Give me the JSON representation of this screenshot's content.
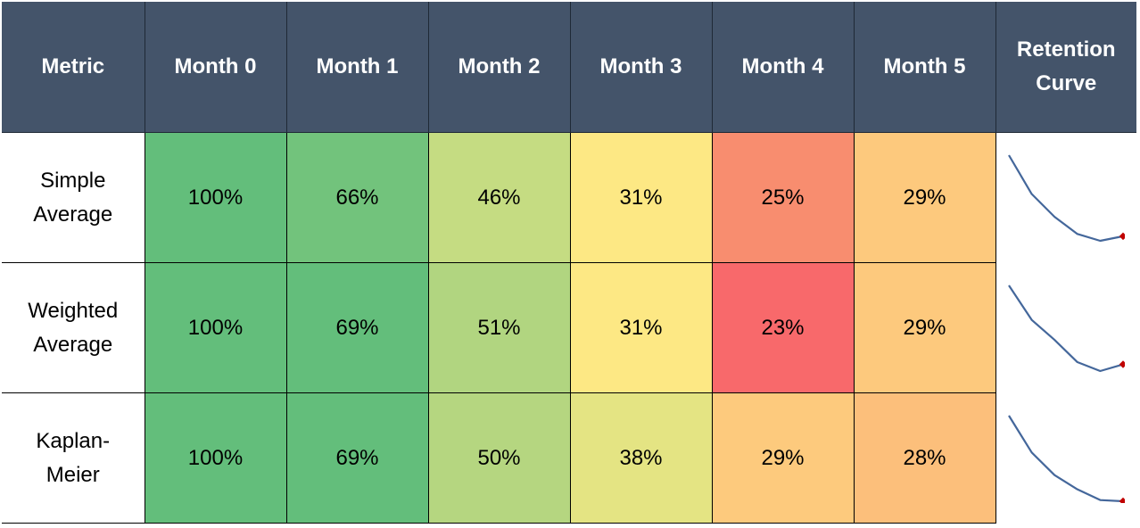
{
  "headers": [
    "Metric",
    "Month 0",
    "Month 1",
    "Month 2",
    "Month 3",
    "Month 4",
    "Month 5",
    "Retention Curve"
  ],
  "rows": [
    {
      "metric": "Simple\nAverage",
      "values": [
        "100%",
        "66%",
        "46%",
        "31%",
        "25%",
        "29%"
      ]
    },
    {
      "metric": "Weighted\nAverage",
      "values": [
        "100%",
        "69%",
        "51%",
        "31%",
        "23%",
        "29%"
      ]
    },
    {
      "metric": "Kaplan-\nMeier",
      "values": [
        "100%",
        "69%",
        "50%",
        "38%",
        "29%",
        "28%"
      ]
    }
  ],
  "chart_data": {
    "type": "table",
    "columns": [
      "Metric",
      "Month 0",
      "Month 1",
      "Month 2",
      "Month 3",
      "Month 4",
      "Month 5"
    ],
    "rows": [
      {
        "name": "Simple Average",
        "values": [
          100,
          66,
          46,
          31,
          25,
          29
        ]
      },
      {
        "name": "Weighted Average",
        "values": [
          100,
          69,
          51,
          31,
          23,
          29
        ]
      },
      {
        "name": "Kaplan-Meier",
        "values": [
          100,
          69,
          50,
          38,
          29,
          28
        ]
      }
    ],
    "cell_colors": [
      [
        "#63be7b",
        "#72c37c",
        "#c5dc82",
        "#fde884",
        "#f88d6f",
        "#fdc97d"
      ],
      [
        "#63be7b",
        "#63be7b",
        "#b1d580",
        "#fde884",
        "#f8696b",
        "#fdc97d"
      ],
      [
        "#63be7b",
        "#63be7b",
        "#b5d680",
        "#e4e483",
        "#fdca7d",
        "#fcbf7b"
      ]
    ],
    "sparkline": {
      "type": "line",
      "line_color": "#44679b",
      "marker_color": "#c00000",
      "marker": "last-point"
    }
  }
}
